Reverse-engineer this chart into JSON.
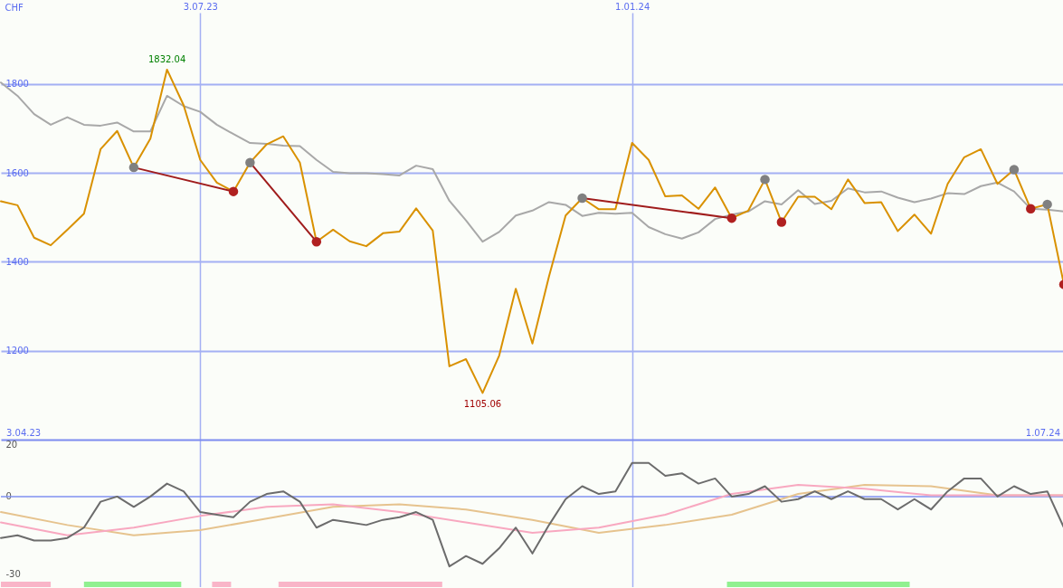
{
  "chart_data": [
    {
      "type": "line",
      "ylabel": "CHF",
      "xlim": [
        "2023-04-10",
        "2024-07-01"
      ],
      "ylim": [
        1000,
        1960
      ],
      "xticks": [
        {
          "value": "2023-07-03",
          "label": "3.07.23"
        },
        {
          "value": "2024-01-01",
          "label": "1.01.24"
        }
      ],
      "yticks": [
        1200,
        1400,
        1600,
        1800
      ],
      "grid": true,
      "x": [
        "2023-04-10",
        "2023-04-17",
        "2023-04-24",
        "2023-05-01",
        "2023-05-08",
        "2023-05-15",
        "2023-05-22",
        "2023-05-29",
        "2023-06-05",
        "2023-06-12",
        "2023-06-19",
        "2023-06-26",
        "2023-07-03",
        "2023-07-10",
        "2023-07-17",
        "2023-07-24",
        "2023-07-31",
        "2023-08-07",
        "2023-08-14",
        "2023-08-21",
        "2023-08-28",
        "2023-09-04",
        "2023-09-11",
        "2023-09-18",
        "2023-09-25",
        "2023-10-02",
        "2023-10-09",
        "2023-10-16",
        "2023-10-23",
        "2023-10-30",
        "2023-11-06",
        "2023-11-13",
        "2023-11-20",
        "2023-11-27",
        "2023-12-04",
        "2023-12-11",
        "2023-12-18",
        "2023-12-25",
        "2024-01-01",
        "2024-01-08",
        "2024-01-15",
        "2024-01-22",
        "2024-01-29",
        "2024-02-05",
        "2024-02-12",
        "2024-02-19",
        "2024-02-26",
        "2024-03-04",
        "2024-03-11",
        "2024-03-18",
        "2024-03-25",
        "2024-04-01",
        "2024-04-08",
        "2024-04-15",
        "2024-04-22",
        "2024-04-29",
        "2024-05-06",
        "2024-05-13",
        "2024-05-20",
        "2024-05-27",
        "2024-06-03",
        "2024-06-10",
        "2024-06-17",
        "2024-06-24",
        "2024-07-01"
      ],
      "series": [
        {
          "type": "line",
          "color": "#a8a8a8",
          "values": [
            1803,
            1773,
            1732,
            1708,
            1725,
            1708,
            1706,
            1713,
            1693,
            1693,
            1773,
            1750,
            1737,
            1708,
            1687,
            1667,
            1665,
            1661,
            1660,
            1629,
            1602,
            1599,
            1599,
            1597,
            1594,
            1616,
            1608,
            1537,
            1493,
            1445,
            1467,
            1504,
            1515,
            1534,
            1528,
            1503,
            1510,
            1508,
            1510,
            1478,
            1462,
            1452,
            1466,
            1496,
            1506,
            1513,
            1536,
            1529,
            1561,
            1530,
            1537,
            1565,
            1556,
            1558,
            1544,
            1534,
            1542,
            1554,
            1552,
            1570,
            1578,
            1558,
            1519,
            1517,
            1513
          ]
        },
        {
          "type": "line",
          "color": "#d99100",
          "values": [
            1536,
            1527,
            1454,
            1437,
            1472,
            1508,
            1653,
            1694,
            1612,
            1677,
            1832,
            1752,
            1629,
            1578,
            1558,
            1623,
            1664,
            1682,
            1623,
            1445,
            1472,
            1446,
            1435,
            1464,
            1468,
            1520,
            1470,
            1165,
            1181,
            1105,
            1189,
            1339,
            1216,
            1367,
            1504,
            1543,
            1518,
            1518,
            1667,
            1629,
            1547,
            1549,
            1519,
            1567,
            1498,
            1515,
            1585,
            1489,
            1546,
            1546,
            1518,
            1585,
            1532,
            1534,
            1469,
            1506,
            1463,
            1575,
            1635,
            1653,
            1575,
            1607,
            1519,
            1529,
            1349
          ]
        },
        {
          "type": "line",
          "color": "#a01c1c",
          "x": [
            "2023-06-05",
            "2023-07-17"
          ],
          "values": [
            1612,
            1558
          ]
        },
        {
          "type": "line",
          "color": "#a01c1c",
          "x": [
            "2023-07-24",
            "2023-08-21"
          ],
          "values": [
            1623,
            1445
          ]
        },
        {
          "type": "line",
          "color": "#a01c1c",
          "x": [
            "2023-12-11",
            "2024-02-12"
          ],
          "values": [
            1543,
            1498
          ]
        },
        {
          "type": "scatter",
          "marker": "circle",
          "color": "#808080",
          "x": [
            "2023-06-05",
            "2023-07-24",
            "2023-12-11",
            "2024-02-26",
            "2024-06-10",
            "2024-06-24"
          ],
          "values": [
            1612,
            1623,
            1543,
            1585,
            1607,
            1529
          ]
        },
        {
          "type": "scatter",
          "marker": "circle",
          "color": "#b02020",
          "x": [
            "2023-07-17",
            "2023-08-21",
            "2024-02-12",
            "2024-03-04",
            "2024-06-17",
            "2024-07-01"
          ],
          "values": [
            1558,
            1445,
            1498,
            1489,
            1519,
            1349
          ]
        }
      ],
      "annotations": [
        {
          "text": "1832.04",
          "x": "2023-06-19",
          "y": 1832
        },
        {
          "text": "1105.06",
          "x": "2023-10-30",
          "y": 1105
        },
        "3.04.23",
        "1.07.24"
      ]
    },
    {
      "type": "line",
      "xlim": [
        "2023-04-10",
        "2024-07-01"
      ],
      "ylim": [
        -35,
        22
      ],
      "xticks": [
        {
          "value": "2023-07-03",
          "label": null
        },
        {
          "value": "2024-01-01",
          "label": null
        }
      ],
      "yticks": [
        20,
        0,
        -30
      ],
      "grid": "x",
      "tick_labels": "y",
      "ref_lines": [
        {
          "axis": "y",
          "value": 0,
          "color": "#8090f0"
        }
      ],
      "bands": [
        {
          "axis": "x",
          "from": "2023-04-10",
          "to": "2023-05-01",
          "color": "#f9b5c8"
        },
        {
          "axis": "x",
          "from": "2023-05-15",
          "to": "2023-06-25",
          "color": "#90f090"
        },
        {
          "axis": "x",
          "from": "2023-07-08",
          "to": "2023-07-16",
          "color": "#f9b5c8"
        },
        {
          "axis": "x",
          "from": "2023-08-05",
          "to": "2023-10-13",
          "color": "#f9b5c8"
        },
        {
          "axis": "x",
          "from": "2024-02-10",
          "to": "2024-04-27",
          "color": "#90f090"
        }
      ],
      "x": [
        "2023-04-10",
        "2023-04-17",
        "2023-04-24",
        "2023-05-01",
        "2023-05-08",
        "2023-05-15",
        "2023-05-22",
        "2023-05-29",
        "2023-06-05",
        "2023-06-12",
        "2023-06-19",
        "2023-06-26",
        "2023-07-03",
        "2023-07-10",
        "2023-07-17",
        "2023-07-24",
        "2023-07-31",
        "2023-08-07",
        "2023-08-14",
        "2023-08-21",
        "2023-08-28",
        "2023-09-04",
        "2023-09-11",
        "2023-09-18",
        "2023-09-25",
        "2023-10-02",
        "2023-10-09",
        "2023-10-16",
        "2023-10-23",
        "2023-10-30",
        "2023-11-06",
        "2023-11-13",
        "2023-11-20",
        "2023-11-27",
        "2023-12-04",
        "2023-12-11",
        "2023-12-18",
        "2023-12-25",
        "2024-01-01",
        "2024-01-08",
        "2024-01-15",
        "2024-01-22",
        "2024-01-29",
        "2024-02-05",
        "2024-02-12",
        "2024-02-19",
        "2024-02-26",
        "2024-03-04",
        "2024-03-11",
        "2024-03-18",
        "2024-03-25",
        "2024-04-01",
        "2024-04-08",
        "2024-04-15",
        "2024-04-22",
        "2024-04-29",
        "2024-05-06",
        "2024-05-13",
        "2024-05-20",
        "2024-05-27",
        "2024-06-03",
        "2024-06-10",
        "2024-06-17",
        "2024-06-24",
        "2024-07-01"
      ],
      "series": [
        {
          "type": "line",
          "color": "#e6c38e",
          "x": [
            "2023-04-10",
            "2023-05-08",
            "2023-06-05",
            "2023-07-03",
            "2023-07-31",
            "2023-08-28",
            "2023-09-25",
            "2023-10-23",
            "2023-11-20",
            "2023-12-18",
            "2024-01-15",
            "2024-02-12",
            "2024-03-11",
            "2024-04-08",
            "2024-05-06",
            "2024-06-03",
            "2024-07-01"
          ],
          "values": [
            -6,
            -11,
            -15,
            -13,
            -8.5,
            -4,
            -3,
            -5,
            -9,
            -14,
            -11,
            -7,
            1,
            4.5,
            4,
            0.5,
            0.5
          ]
        },
        {
          "type": "line",
          "color": "#f8a8c0",
          "x": [
            "2023-04-10",
            "2023-05-08",
            "2023-06-05",
            "2023-07-03",
            "2023-07-31",
            "2023-08-28",
            "2023-09-25",
            "2023-10-23",
            "2023-11-20",
            "2023-12-18",
            "2024-01-15",
            "2024-02-12",
            "2024-03-11",
            "2024-04-08",
            "2024-05-06",
            "2024-06-03",
            "2024-07-01"
          ],
          "values": [
            -10,
            -15,
            -12,
            -7.5,
            -4,
            -3,
            -6,
            -10,
            -14,
            -12,
            -7,
            1,
            4.5,
            3,
            0.5,
            0.5,
            0.5
          ]
        },
        {
          "type": "line",
          "color": "#6c6c6c",
          "values": [
            -16,
            -15,
            -17,
            -17,
            -16,
            -12,
            -2,
            0,
            -4,
            0,
            5,
            2,
            -6,
            -7,
            -8,
            -2,
            1,
            2,
            -2,
            -12,
            -9,
            -10,
            -11,
            -9,
            -8,
            -6,
            -9,
            -27,
            -23,
            -26,
            -20,
            -12,
            -22,
            -11,
            -1,
            4,
            1,
            2,
            13,
            13,
            8,
            9,
            5,
            7,
            0,
            1,
            4,
            -2,
            -1,
            2,
            -1,
            2,
            -1,
            -1,
            -5,
            -1,
            -5,
            2,
            7,
            7,
            0,
            4,
            1,
            2,
            -12
          ]
        }
      ]
    }
  ]
}
